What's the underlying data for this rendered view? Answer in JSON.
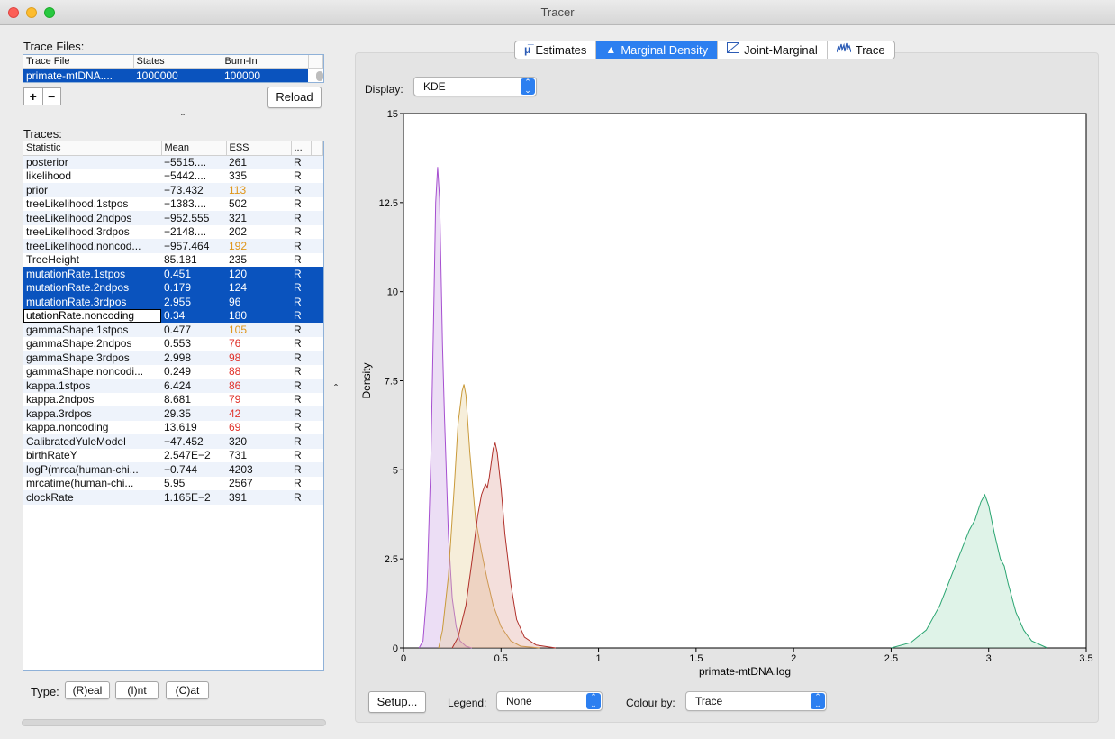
{
  "window": {
    "title": "Tracer"
  },
  "trace_files": {
    "label": "Trace Files:",
    "columns": [
      "Trace File",
      "States",
      "Burn-In"
    ],
    "rows": [
      [
        "primate-mtDNA....",
        "1000000",
        "100000"
      ]
    ],
    "add_label": "+",
    "remove_label": "−",
    "reload_label": "Reload",
    "collapse_glyph": "ˆ"
  },
  "traces": {
    "label": "Traces:",
    "columns": [
      "Statistic",
      "Mean",
      "ESS",
      "..."
    ],
    "rows": [
      {
        "statistic": "posterior",
        "mean": "−5515....",
        "ess": "261",
        "type": "R",
        "ess_color": "normal",
        "selected": false
      },
      {
        "statistic": "likelihood",
        "mean": "−5442....",
        "ess": "335",
        "type": "R",
        "ess_color": "normal",
        "selected": false
      },
      {
        "statistic": "prior",
        "mean": "−73.432",
        "ess": "113",
        "type": "R",
        "ess_color": "orange",
        "selected": false
      },
      {
        "statistic": "treeLikelihood.1stpos",
        "mean": "−1383....",
        "ess": "502",
        "type": "R",
        "ess_color": "normal",
        "selected": false
      },
      {
        "statistic": "treeLikelihood.2ndpos",
        "mean": "−952.555",
        "ess": "321",
        "type": "R",
        "ess_color": "normal",
        "selected": false
      },
      {
        "statistic": "treeLikelihood.3rdpos",
        "mean": "−2148....",
        "ess": "202",
        "type": "R",
        "ess_color": "normal",
        "selected": false
      },
      {
        "statistic": "treeLikelihood.noncod...",
        "mean": "−957.464",
        "ess": "192",
        "type": "R",
        "ess_color": "orange",
        "selected": false
      },
      {
        "statistic": "TreeHeight",
        "mean": "85.181",
        "ess": "235",
        "type": "R",
        "ess_color": "normal",
        "selected": false
      },
      {
        "statistic": "mutationRate.1stpos",
        "mean": "0.451",
        "ess": "120",
        "type": "R",
        "ess_color": "orange",
        "selected": true
      },
      {
        "statistic": "mutationRate.2ndpos",
        "mean": "0.179",
        "ess": "124",
        "type": "R",
        "ess_color": "orange",
        "selected": true
      },
      {
        "statistic": "mutationRate.3rdpos",
        "mean": "2.955",
        "ess": "96",
        "type": "R",
        "ess_color": "red",
        "selected": true
      },
      {
        "statistic": "utationRate.noncoding",
        "mean": "0.34",
        "ess": "180",
        "type": "R",
        "ess_color": "orange",
        "selected": true,
        "focus": true
      },
      {
        "statistic": "gammaShape.1stpos",
        "mean": "0.477",
        "ess": "105",
        "type": "R",
        "ess_color": "orange",
        "selected": false
      },
      {
        "statistic": "gammaShape.2ndpos",
        "mean": "0.553",
        "ess": "76",
        "type": "R",
        "ess_color": "red",
        "selected": false
      },
      {
        "statistic": "gammaShape.3rdpos",
        "mean": "2.998",
        "ess": "98",
        "type": "R",
        "ess_color": "red",
        "selected": false
      },
      {
        "statistic": "gammaShape.noncodi...",
        "mean": "0.249",
        "ess": "88",
        "type": "R",
        "ess_color": "red",
        "selected": false
      },
      {
        "statistic": "kappa.1stpos",
        "mean": "6.424",
        "ess": "86",
        "type": "R",
        "ess_color": "red",
        "selected": false
      },
      {
        "statistic": "kappa.2ndpos",
        "mean": "8.681",
        "ess": "79",
        "type": "R",
        "ess_color": "red",
        "selected": false
      },
      {
        "statistic": "kappa.3rdpos",
        "mean": "29.35",
        "ess": "42",
        "type": "R",
        "ess_color": "red",
        "selected": false
      },
      {
        "statistic": "kappa.noncoding",
        "mean": "13.619",
        "ess": "69",
        "type": "R",
        "ess_color": "red",
        "selected": false
      },
      {
        "statistic": "CalibratedYuleModel",
        "mean": "−47.452",
        "ess": "320",
        "type": "R",
        "ess_color": "normal",
        "selected": false
      },
      {
        "statistic": "birthRateY",
        "mean": "2.547E−2",
        "ess": "731",
        "type": "R",
        "ess_color": "normal",
        "selected": false
      },
      {
        "statistic": "logP(mrca(human-chi...",
        "mean": "−0.744",
        "ess": "4203",
        "type": "R",
        "ess_color": "normal",
        "selected": false
      },
      {
        "statistic": "mrcatime(human-chi...",
        "mean": "5.95",
        "ess": "2567",
        "type": "R",
        "ess_color": "normal",
        "selected": false
      },
      {
        "statistic": "clockRate",
        "mean": "1.165E−2",
        "ess": "391",
        "type": "R",
        "ess_color": "normal",
        "selected": false
      }
    ]
  },
  "type_bar": {
    "label": "Type:",
    "real": "(R)eal",
    "int": "(I)nt",
    "cat": "(C)at"
  },
  "divider_glyph": "ˆ",
  "tabs": [
    {
      "label": "Estimates",
      "icon": "mu-icon",
      "active": false
    },
    {
      "label": "Marginal Density",
      "icon": "density-icon",
      "active": true
    },
    {
      "label": "Joint-Marginal",
      "icon": "joint-icon",
      "active": false
    },
    {
      "label": "Trace",
      "icon": "trace-icon",
      "active": false
    }
  ],
  "display": {
    "label": "Display:",
    "value": "KDE"
  },
  "bottom_bar": {
    "setup_label": "Setup...",
    "legend_label": "Legend:",
    "legend_value": "None",
    "colour_label": "Colour by:",
    "colour_value": "Trace"
  },
  "colors": {
    "accent": "#2c7ff0",
    "selection": "#0a53be",
    "ess_orange": "#e0961a",
    "ess_red": "#e0312a"
  },
  "chart_data": {
    "type": "area",
    "xlabel": "primate-mtDNA.log",
    "ylabel": "Density",
    "xlim": [
      0,
      3.5
    ],
    "ylim": [
      0,
      15
    ],
    "xticks": [
      "0",
      "0.5",
      "1",
      "1.5",
      "2",
      "2.5",
      "3",
      "3.5"
    ],
    "yticks": [
      "0",
      "2.5",
      "5",
      "7.5",
      "10",
      "12.5",
      "15"
    ],
    "series": [
      {
        "color": "#a64fd0",
        "fill": "rgba(200,160,225,0.35)",
        "points": [
          [
            0.08,
            0
          ],
          [
            0.1,
            0.2
          ],
          [
            0.12,
            1.6
          ],
          [
            0.14,
            5.2
          ],
          [
            0.155,
            9.5
          ],
          [
            0.165,
            12.5
          ],
          [
            0.175,
            13.5
          ],
          [
            0.185,
            12.6
          ],
          [
            0.2,
            8.5
          ],
          [
            0.21,
            6.5
          ],
          [
            0.23,
            3.2
          ],
          [
            0.25,
            1.4
          ],
          [
            0.27,
            0.6
          ],
          [
            0.29,
            0.2
          ],
          [
            0.32,
            0.05
          ],
          [
            0.35,
            0
          ]
        ]
      },
      {
        "color": "#c99a3a",
        "fill": "rgba(230,205,150,0.35)",
        "points": [
          [
            0.18,
            0
          ],
          [
            0.2,
            0.5
          ],
          [
            0.23,
            2
          ],
          [
            0.26,
            4.5
          ],
          [
            0.28,
            6.3
          ],
          [
            0.3,
            7.2
          ],
          [
            0.31,
            7.4
          ],
          [
            0.32,
            7.1
          ],
          [
            0.34,
            5.5
          ],
          [
            0.37,
            3.6
          ],
          [
            0.4,
            2.7
          ],
          [
            0.43,
            1.9
          ],
          [
            0.46,
            1.2
          ],
          [
            0.5,
            0.6
          ],
          [
            0.55,
            0.2
          ],
          [
            0.6,
            0.05
          ],
          [
            0.7,
            0
          ]
        ]
      },
      {
        "color": "#b0302a",
        "fill": "rgba(220,150,140,0.3)",
        "points": [
          [
            0.25,
            0
          ],
          [
            0.28,
            0.3
          ],
          [
            0.32,
            1.2
          ],
          [
            0.35,
            2.4
          ],
          [
            0.38,
            3.7
          ],
          [
            0.4,
            4.3
          ],
          [
            0.42,
            4.6
          ],
          [
            0.43,
            4.5
          ],
          [
            0.44,
            4.8
          ],
          [
            0.46,
            5.6
          ],
          [
            0.47,
            5.75
          ],
          [
            0.48,
            5.5
          ],
          [
            0.5,
            4.5
          ],
          [
            0.52,
            3.2
          ],
          [
            0.55,
            1.8
          ],
          [
            0.58,
            0.8
          ],
          [
            0.62,
            0.3
          ],
          [
            0.68,
            0.08
          ],
          [
            0.78,
            0
          ]
        ]
      },
      {
        "color": "#2aa571",
        "fill": "rgba(150,215,180,0.3)",
        "points": [
          [
            2.5,
            0
          ],
          [
            2.6,
            0.15
          ],
          [
            2.68,
            0.5
          ],
          [
            2.75,
            1.2
          ],
          [
            2.8,
            1.9
          ],
          [
            2.85,
            2.6
          ],
          [
            2.9,
            3.3
          ],
          [
            2.93,
            3.6
          ],
          [
            2.96,
            4.1
          ],
          [
            2.98,
            4.3
          ],
          [
            3.0,
            4.0
          ],
          [
            3.03,
            3.2
          ],
          [
            3.06,
            2.5
          ],
          [
            3.08,
            2.3
          ],
          [
            3.1,
            1.8
          ],
          [
            3.14,
            1.0
          ],
          [
            3.18,
            0.5
          ],
          [
            3.22,
            0.2
          ],
          [
            3.3,
            0
          ]
        ]
      }
    ]
  }
}
